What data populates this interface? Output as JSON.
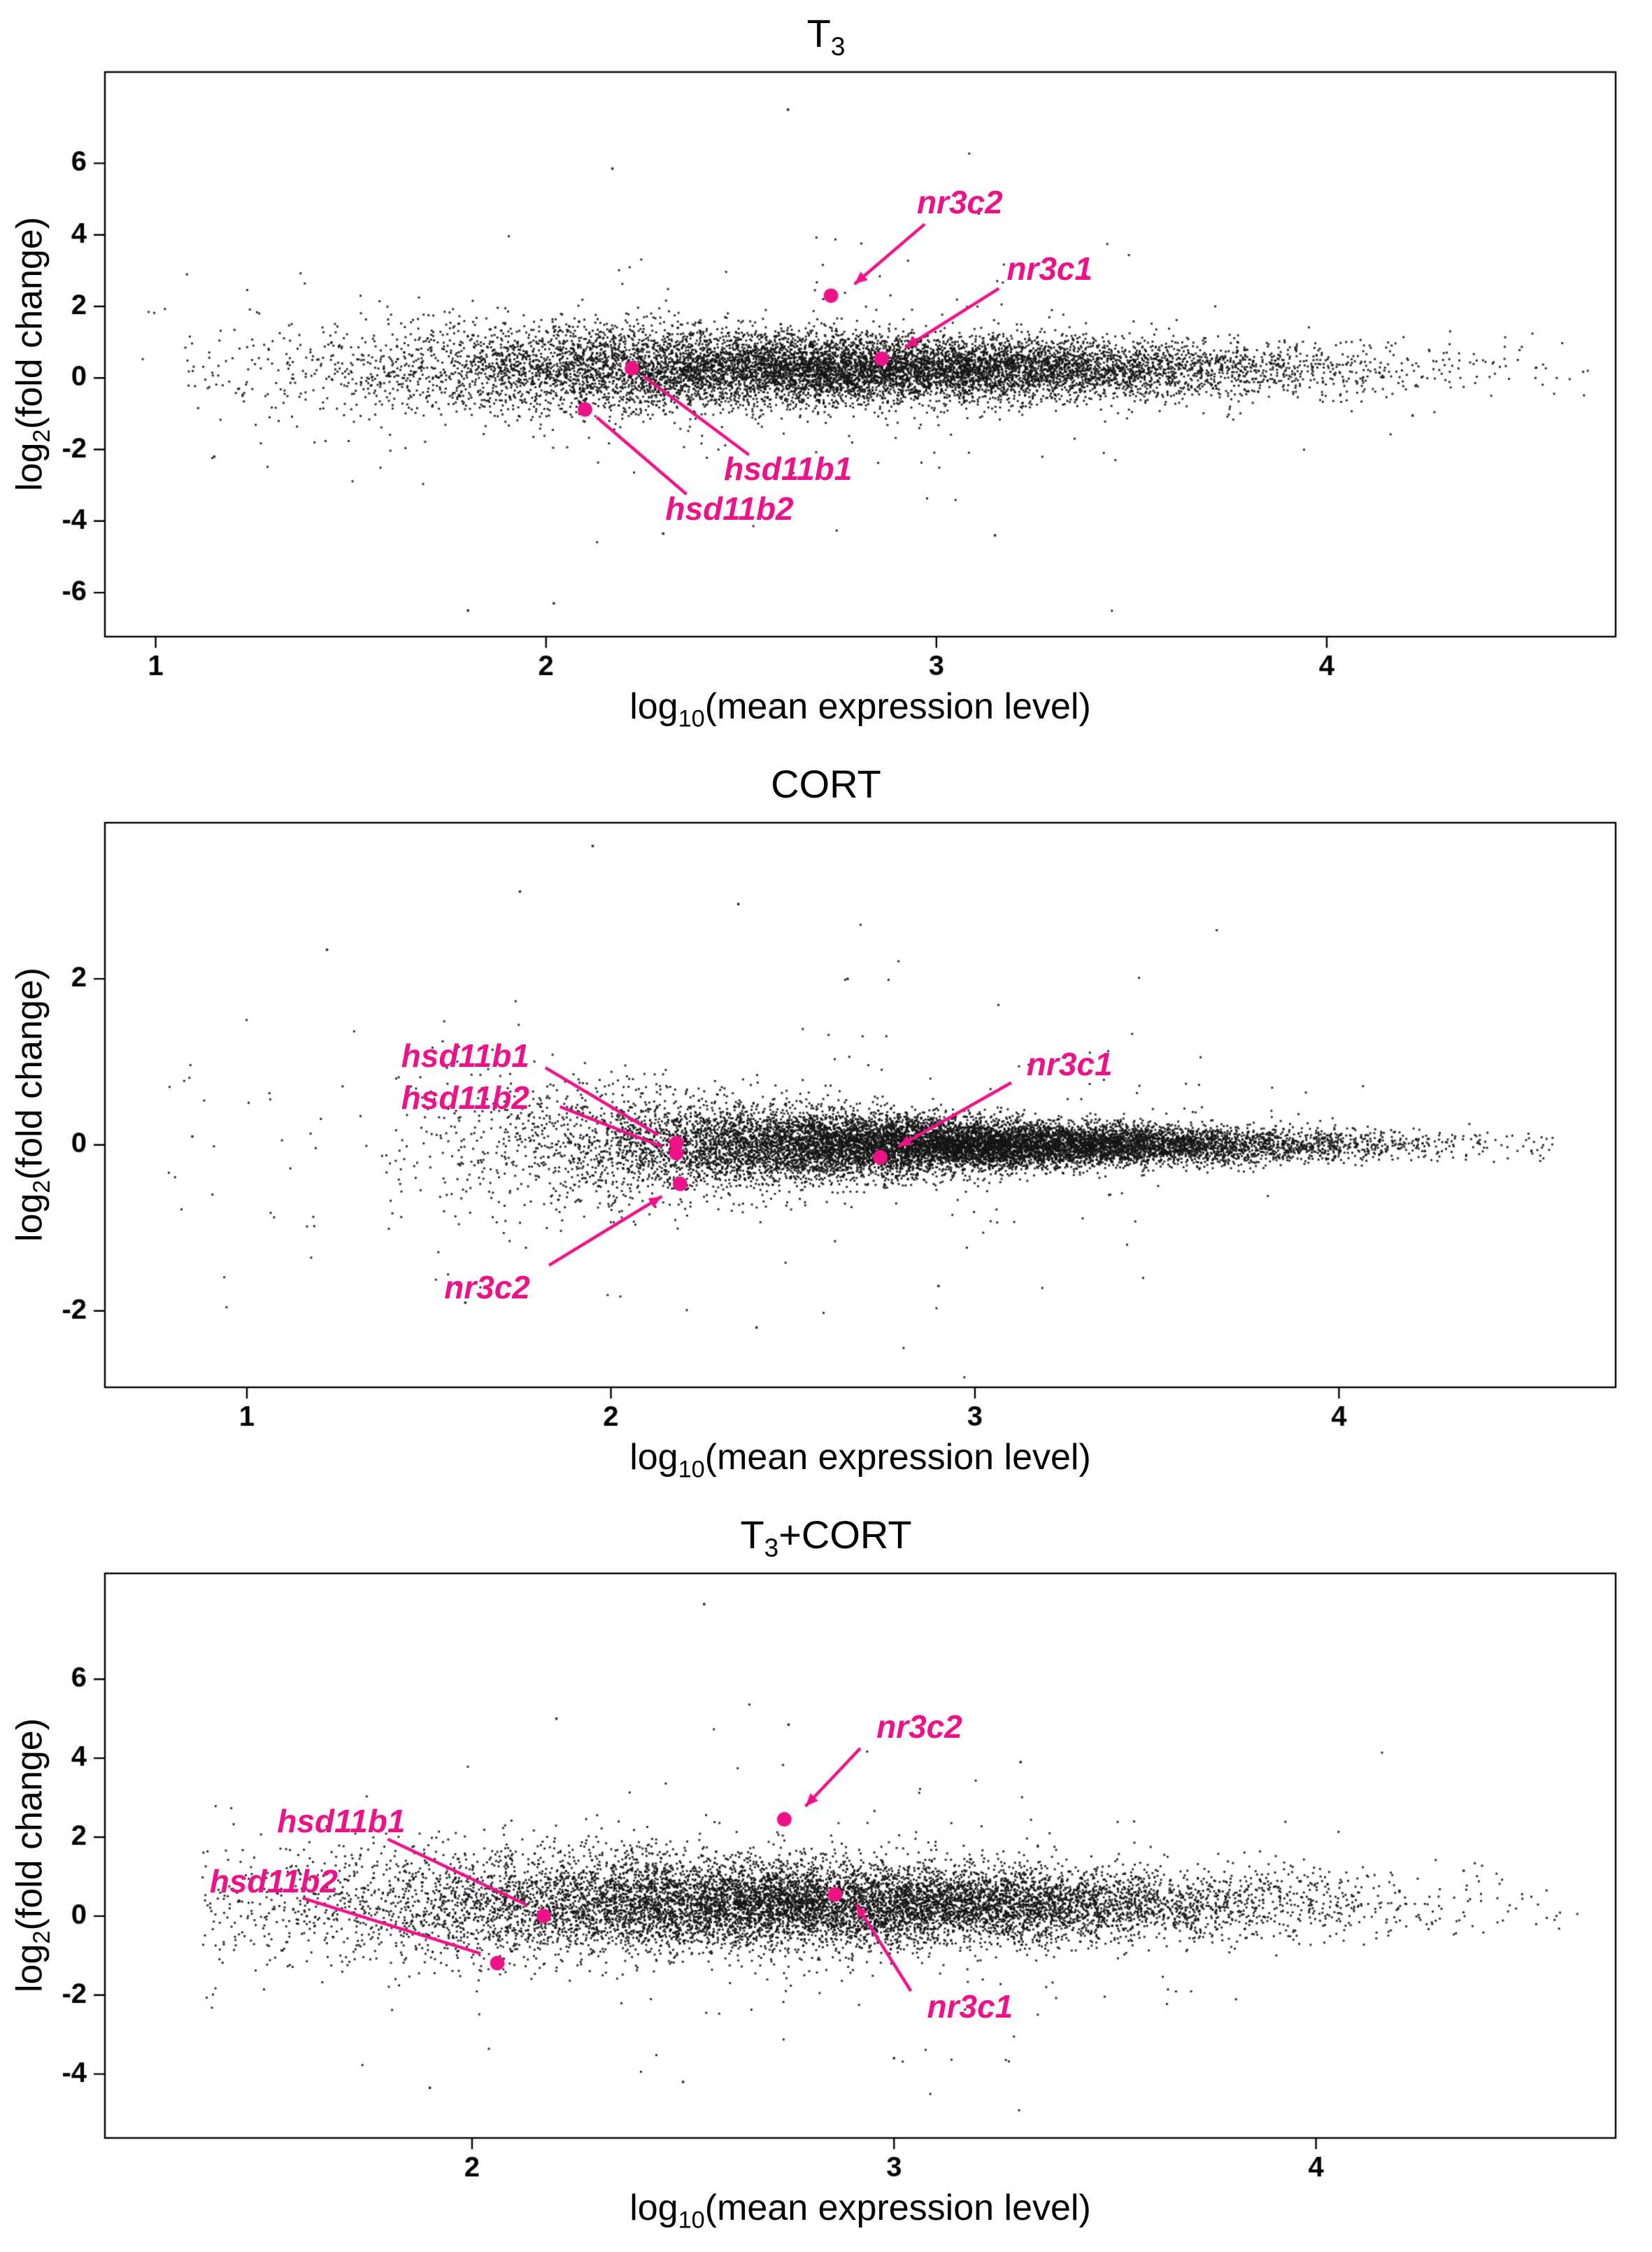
{
  "colors": {
    "background": "#ffffff",
    "point": "#141414",
    "highlight": "#EE1289",
    "annotation_text": "#EE1289",
    "axis": "#000000"
  },
  "chart_data": [
    {
      "type": "scatter",
      "id": "T3",
      "title": {
        "main": "T",
        "sub": "3",
        "suffix": ""
      },
      "xlabel": {
        "pre": "log",
        "sub": "10",
        "post": "(mean expression level)"
      },
      "ylabel": {
        "pre": "log",
        "sub": "2",
        "post": "(fold change)"
      },
      "xlim": [
        0.87,
        4.74
      ],
      "ylim": [
        -7.23,
        8.55
      ],
      "xticks": [
        1,
        2,
        3,
        4
      ],
      "yticks": [
        -6,
        -4,
        -2,
        0,
        2,
        4,
        6
      ],
      "cloud": {
        "seed": 101,
        "n": 10500,
        "x_mean": 2.75,
        "x_sd": 0.6,
        "x_clip": [
          1.08,
          4.68
        ],
        "y_center": 0.25,
        "sd_base": 0.4,
        "sd_extra": 0.3,
        "sd_from": 1.8,
        "sd_decay": 1.3,
        "outlier_frac": 0.02,
        "outlier_sd": 1.6,
        "left_tail": {
          "n": 55,
          "x_range": [
            0.95,
            1.75
          ],
          "y_sd": 1.3
        }
      },
      "outlier_points": [
        [
          2.62,
          7.5
        ],
        [
          2.17,
          5.85
        ],
        [
          1.8,
          -6.5
        ],
        [
          2.3,
          -4.35
        ],
        [
          3.15,
          -4.4
        ],
        [
          1.15,
          -2.2
        ],
        [
          2.02,
          -6.3
        ],
        [
          4.22,
          -1.05
        ]
      ],
      "genes": [
        {
          "name": "nr3c2",
          "x": 2.73,
          "y": 2.3,
          "label": [
            3.06,
            4.9
          ],
          "line": [
            [
              2.97,
              4.3
            ],
            [
              2.79,
              2.62
            ]
          ],
          "arrow": true
        },
        {
          "name": "nr3c1",
          "x": 2.86,
          "y": 0.54,
          "label": [
            3.29,
            3.05
          ],
          "line": [
            [
              3.16,
              2.5
            ],
            [
              2.92,
              0.85
            ]
          ],
          "arrow": true
        },
        {
          "name": "hsd11b1",
          "x": 2.22,
          "y": 0.27,
          "label": [
            2.62,
            -2.55
          ],
          "line": [
            [
              2.25,
              0.05
            ],
            [
              2.52,
              -2.15
            ]
          ],
          "arrow": false
        },
        {
          "name": "hsd11b2",
          "x": 2.1,
          "y": -0.88,
          "label": [
            2.47,
            -3.65
          ],
          "line": [
            [
              2.13,
              -1.1
            ],
            [
              2.36,
              -3.25
            ]
          ],
          "arrow": false
        }
      ]
    },
    {
      "type": "scatter",
      "id": "CORT",
      "title": {
        "main": "CORT",
        "sub": "",
        "suffix": ""
      },
      "xlabel": {
        "pre": "log",
        "sub": "10",
        "post": "(mean expression level)"
      },
      "ylabel": {
        "pre": "log",
        "sub": "2",
        "post": "(fold change)"
      },
      "xlim": [
        0.61,
        4.76
      ],
      "ylim": [
        -2.92,
        3.88
      ],
      "xticks": [
        1,
        2,
        3,
        4
      ],
      "yticks": [
        -2,
        0,
        2
      ],
      "cloud": {
        "seed": 202,
        "n": 12500,
        "x_mean": 2.9,
        "x_sd": 0.55,
        "x_clip": [
          1.38,
          4.6
        ],
        "y_center": 0.0,
        "sd_base": 0.09,
        "sd_extra": 0.5,
        "sd_from": 1.55,
        "sd_decay": 1.4,
        "outlier_frac": 0.013,
        "outlier_sd": 0.85,
        "left_tail": {
          "n": 45,
          "x_range": [
            0.78,
            1.8
          ],
          "y_sd": 0.85
        }
      },
      "outlier_points": [
        [
          1.95,
          3.6
        ],
        [
          1.75,
          3.05
        ],
        [
          2.35,
          2.9
        ],
        [
          1.22,
          2.35
        ],
        [
          2.9,
          -1.7
        ],
        [
          2.4,
          -2.2
        ],
        [
          0.85,
          0.1
        ],
        [
          2.65,
          2.0
        ],
        [
          1.6,
          -1.9
        ]
      ],
      "genes": [
        {
          "name": "hsd11b1",
          "x": 2.18,
          "y": 0.02,
          "label": [
            1.6,
            1.07
          ],
          "line": [
            [
              1.82,
              0.93
            ],
            [
              2.13,
              0.12
            ]
          ],
          "arrow": false
        },
        {
          "name": "hsd11b2",
          "x": 2.18,
          "y": -0.1,
          "label": [
            1.6,
            0.57
          ],
          "line": [
            [
              1.86,
              0.46
            ],
            [
              2.14,
              -0.02
            ]
          ],
          "arrow": false
        },
        {
          "name": "nr3c1",
          "x": 2.74,
          "y": -0.15,
          "label": [
            3.26,
            0.97
          ],
          "line": [
            [
              3.1,
              0.75
            ],
            [
              2.79,
              -0.02
            ]
          ],
          "arrow": true
        },
        {
          "name": "nr3c2",
          "x": 2.19,
          "y": -0.47,
          "label": [
            1.66,
            -1.72
          ],
          "line": [
            [
              1.83,
              -1.45
            ],
            [
              2.14,
              -0.62
            ]
          ],
          "arrow": true
        }
      ]
    },
    {
      "type": "scatter",
      "id": "T3+CORT",
      "title": {
        "main": "T",
        "sub": "3",
        "suffix": "+CORT"
      },
      "xlabel": {
        "pre": "log",
        "sub": "10",
        "post": "(mean expression level)"
      },
      "ylabel": {
        "pre": "log",
        "sub": "2",
        "post": "(fold change)"
      },
      "xlim": [
        1.13,
        4.71
      ],
      "ylim": [
        -5.62,
        8.68
      ],
      "xticks": [
        2,
        3,
        4
      ],
      "yticks": [
        -4,
        -2,
        0,
        2,
        4,
        6
      ],
      "cloud": {
        "seed": 303,
        "n": 10800,
        "x_mean": 2.8,
        "x_sd": 0.58,
        "x_clip": [
          1.36,
          4.62
        ],
        "y_center": 0.3,
        "sd_base": 0.42,
        "sd_extra": 0.35,
        "sd_from": 1.9,
        "sd_decay": 1.2,
        "outlier_frac": 0.022,
        "outlier_sd": 1.7,
        "left_tail": {
          "n": 30,
          "x_range": [
            1.38,
            1.8
          ],
          "y_sd": 1.4
        }
      },
      "outlier_points": [
        [
          2.55,
          7.9
        ],
        [
          2.2,
          5.0
        ],
        [
          2.75,
          4.85
        ],
        [
          3.3,
          3.9
        ],
        [
          1.9,
          -4.35
        ],
        [
          2.5,
          -4.2
        ],
        [
          3.0,
          -3.6
        ],
        [
          4.35,
          1.15
        ]
      ],
      "genes": [
        {
          "name": "nr3c2",
          "x": 2.74,
          "y": 2.45,
          "label": [
            3.06,
            4.8
          ],
          "line": [
            [
              2.92,
              4.25
            ],
            [
              2.79,
              2.78
            ]
          ],
          "arrow": true
        },
        {
          "name": "hsd11b1",
          "x": 2.17,
          "y": 0.0,
          "label": [
            1.69,
            2.4
          ],
          "line": [
            [
              1.8,
              1.95
            ],
            [
              2.13,
              0.28
            ]
          ],
          "arrow": false
        },
        {
          "name": "hsd11b2",
          "x": 2.06,
          "y": -1.19,
          "label": [
            1.53,
            0.88
          ],
          "line": [
            [
              1.6,
              0.45
            ],
            [
              2.02,
              -0.95
            ]
          ],
          "arrow": false
        },
        {
          "name": "nr3c1",
          "x": 2.86,
          "y": 0.55,
          "label": [
            3.18,
            -2.3
          ],
          "line": [
            [
              3.04,
              -1.9
            ],
            [
              2.91,
              0.3
            ]
          ],
          "arrow": true
        }
      ]
    }
  ]
}
